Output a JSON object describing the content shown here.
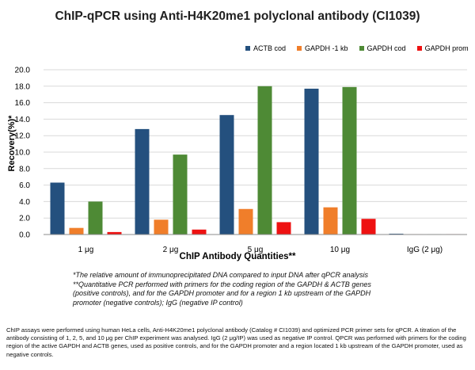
{
  "chart_data": {
    "type": "bar",
    "title": "ChIP-qPCR using Anti-H4K20me1  polyclonal antibody (CI1039)",
    "xlabel": "ChIP Antibody Quantities**",
    "ylabel": "Recovery(%)*",
    "ylim": [
      0,
      20
    ],
    "yticks": [
      "0.0",
      "2.0",
      "4.0",
      "6.0",
      "8.0",
      "10.0",
      "12.0",
      "14.0",
      "16.0",
      "18.0",
      "20.0"
    ],
    "categories": [
      "1 μg",
      "2 μg",
      "5 μg",
      "10 μg",
      "IgG (2 μg)"
    ],
    "series": [
      {
        "name": "ACTB cod",
        "color": "#24507e",
        "values": [
          6.3,
          12.8,
          14.5,
          17.7,
          0.1
        ]
      },
      {
        "name": "GAPDH -1 kb",
        "color": "#f07e2a",
        "values": [
          0.8,
          1.8,
          3.1,
          3.3,
          0.05
        ]
      },
      {
        "name": "GAPDH cod",
        "color": "#4e8a35",
        "values": [
          4.0,
          9.7,
          18.0,
          17.9,
          0.05
        ]
      },
      {
        "name": "GAPDH prom",
        "color": "#ee1111",
        "values": [
          0.3,
          0.6,
          1.5,
          1.9,
          0.05
        ]
      }
    ],
    "legend_position": "top-right",
    "grid": true
  },
  "footnotes": [
    "*The relative amount of immunoprecipitated DNA compared to input DNA after qPCR analysis",
    "**Quantitative PCR performed with primers for the coding region of the GAPDH & ACTB genes",
    "(positive controls), and  for the GAPDH promoter and for a region 1 kb upstream of the GAPDH",
    "promoter (negative controls); IgG (negative IP control)"
  ],
  "caption": "ChIP assays were performed using human HeLa cells, Anti-H4K20me1 polyclonal antibody (Catalog # CI1039) and optimized PCR primer sets for qPCR. A titration of the antibody consisting of 1, 2, 5, and 10 μg per ChIP experiment was analysed. IgG (2 μg/IP) was used as negative IP control. QPCR was performed with primers for the coding region of the active GAPDH and ACTB genes, used as positive controls, and for the GAPDH promoter and a region located 1 kb upstream of the GAPDH promoter, used as negative controls."
}
